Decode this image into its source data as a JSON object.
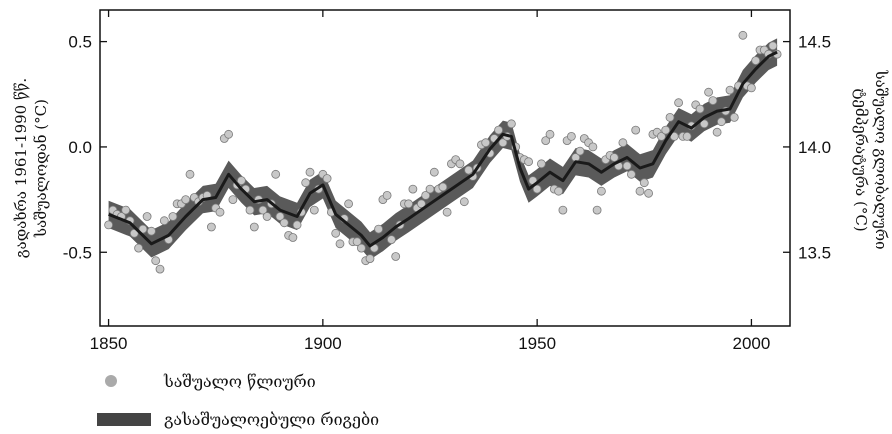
{
  "chart_data": {
    "type": "line",
    "xlim": [
      1848,
      2009
    ],
    "ylim": [
      -0.85,
      0.65
    ],
    "y2lim": [
      13.15,
      14.65
    ],
    "x_ticks": [
      1850,
      1900,
      1950,
      2000
    ],
    "y_ticks": [
      {
        "value": 0.5,
        "label": "0.5"
      },
      {
        "value": 0.0,
        "label": "0.0"
      },
      {
        "value": -0.5,
        "label": "-0.5"
      }
    ],
    "y2_ticks": [
      {
        "value": 14.5,
        "label": "14.5"
      },
      {
        "value": 14.0,
        "label": "14.0"
      },
      {
        "value": 13.5,
        "label": "13.5"
      }
    ],
    "ylabel": {
      "line1": "გადახრა 1961-1990 წწ.",
      "line2": "საშუალოდან (°C)"
    },
    "y2label": {
      "line1": "საშუალო გლობალური",
      "line2": "ტემპერატურა (°C)"
    },
    "grid": false,
    "legend_position": "bottom-left",
    "legend": {
      "annual_label": "საშუალო წლიური",
      "smoothed_label": "გასაშუალოებული რიგები"
    },
    "colors": {
      "dots": "#c8c8c8",
      "dot_edge": "#7a7a7a",
      "band": "#5a5a5a",
      "line": "#1a1a1a",
      "legend_dot": "#aaaaaa",
      "legend_band": "#444444"
    },
    "series": [
      {
        "name": "საშუალო წლიური",
        "kind": "scatter",
        "x": [
          1850,
          1851,
          1852,
          1853,
          1854,
          1855,
          1856,
          1857,
          1858,
          1859,
          1860,
          1861,
          1862,
          1863,
          1864,
          1865,
          1866,
          1867,
          1868,
          1869,
          1870,
          1871,
          1872,
          1873,
          1874,
          1875,
          1876,
          1877,
          1878,
          1879,
          1880,
          1881,
          1882,
          1883,
          1884,
          1885,
          1886,
          1887,
          1888,
          1889,
          1890,
          1891,
          1892,
          1893,
          1894,
          1895,
          1896,
          1897,
          1898,
          1899,
          1900,
          1901,
          1902,
          1903,
          1904,
          1905,
          1906,
          1907,
          1908,
          1909,
          1910,
          1911,
          1912,
          1913,
          1914,
          1915,
          1916,
          1917,
          1918,
          1919,
          1920,
          1921,
          1922,
          1923,
          1924,
          1925,
          1926,
          1927,
          1928,
          1929,
          1930,
          1931,
          1932,
          1933,
          1934,
          1935,
          1936,
          1937,
          1938,
          1939,
          1940,
          1941,
          1942,
          1943,
          1944,
          1945,
          1946,
          1947,
          1948,
          1949,
          1950,
          1951,
          1952,
          1953,
          1954,
          1955,
          1956,
          1957,
          1958,
          1959,
          1960,
          1961,
          1962,
          1963,
          1964,
          1965,
          1966,
          1967,
          1968,
          1969,
          1970,
          1971,
          1972,
          1973,
          1974,
          1975,
          1976,
          1977,
          1978,
          1979,
          1980,
          1981,
          1982,
          1983,
          1984,
          1985,
          1986,
          1987,
          1988,
          1989,
          1990,
          1991,
          1992,
          1993,
          1994,
          1995,
          1996,
          1997,
          1998,
          1999,
          2000,
          2001,
          2002,
          2003,
          2004,
          2005,
          2006
        ],
        "y": [
          -0.37,
          -0.3,
          -0.32,
          -0.33,
          -0.3,
          -0.35,
          -0.41,
          -0.48,
          -0.39,
          -0.33,
          -0.4,
          -0.54,
          -0.58,
          -0.35,
          -0.44,
          -0.33,
          -0.27,
          -0.27,
          -0.25,
          -0.13,
          -0.24,
          -0.26,
          -0.24,
          -0.23,
          -0.38,
          -0.29,
          -0.31,
          0.04,
          0.06,
          -0.25,
          -0.18,
          -0.16,
          -0.2,
          -0.3,
          -0.38,
          -0.25,
          -0.3,
          -0.33,
          -0.27,
          -0.13,
          -0.33,
          -0.36,
          -0.42,
          -0.43,
          -0.37,
          -0.31,
          -0.17,
          -0.12,
          -0.3,
          -0.2,
          -0.13,
          -0.15,
          -0.31,
          -0.41,
          -0.46,
          -0.34,
          -0.27,
          -0.45,
          -0.45,
          -0.48,
          -0.54,
          -0.53,
          -0.48,
          -0.39,
          -0.25,
          -0.23,
          -0.44,
          -0.52,
          -0.37,
          -0.27,
          -0.27,
          -0.2,
          -0.29,
          -0.27,
          -0.23,
          -0.2,
          -0.12,
          -0.2,
          -0.19,
          -0.31,
          -0.08,
          -0.06,
          -0.08,
          -0.26,
          -0.11,
          -0.14,
          -0.1,
          0.01,
          0.02,
          -0.03,
          0.04,
          0.08,
          0.02,
          0.05,
          0.11,
          0.0,
          -0.05,
          -0.06,
          -0.07,
          -0.16,
          -0.2,
          -0.08,
          0.03,
          0.06,
          -0.2,
          -0.21,
          -0.3,
          0.03,
          0.05,
          -0.05,
          -0.02,
          0.04,
          0.02,
          0.0,
          -0.3,
          -0.21,
          -0.06,
          -0.04,
          -0.05,
          -0.09,
          0.02,
          -0.09,
          -0.13,
          0.08,
          -0.21,
          -0.17,
          -0.22,
          0.06,
          0.07,
          0.05,
          0.08,
          0.14,
          0.05,
          0.21,
          0.05,
          0.05,
          0.1,
          0.2,
          0.18,
          0.11,
          0.26,
          0.22,
          0.07,
          0.12,
          0.17,
          0.27,
          0.14,
          0.29,
          0.53,
          0.29,
          0.28,
          0.41,
          0.46,
          0.46,
          0.44,
          0.48,
          0.44
        ]
      },
      {
        "name": "გასაშუალოებული რიგები",
        "kind": "line",
        "x": [
          1850,
          1855,
          1860,
          1864,
          1868,
          1872,
          1875,
          1878,
          1881,
          1884,
          1887,
          1890,
          1894,
          1897,
          1900,
          1903,
          1906,
          1909,
          1911,
          1914,
          1917,
          1920,
          1925,
          1930,
          1935,
          1939,
          1942,
          1944,
          1946,
          1948,
          1950,
          1953,
          1956,
          1959,
          1962,
          1965,
          1968,
          1971,
          1974,
          1977,
          1980,
          1983,
          1986,
          1989,
          1992,
          1995,
          1998,
          2001,
          2004,
          2006
        ],
        "y": [
          -0.32,
          -0.36,
          -0.46,
          -0.42,
          -0.33,
          -0.25,
          -0.24,
          -0.13,
          -0.2,
          -0.26,
          -0.25,
          -0.3,
          -0.33,
          -0.22,
          -0.18,
          -0.32,
          -0.37,
          -0.42,
          -0.47,
          -0.43,
          -0.38,
          -0.34,
          -0.27,
          -0.2,
          -0.13,
          -0.01,
          0.06,
          0.05,
          -0.1,
          -0.2,
          -0.17,
          -0.12,
          -0.16,
          -0.07,
          -0.08,
          -0.12,
          -0.08,
          -0.05,
          -0.1,
          -0.08,
          0.03,
          0.12,
          0.09,
          0.14,
          0.17,
          0.18,
          0.3,
          0.37,
          0.43,
          0.45
        ]
      }
    ]
  }
}
